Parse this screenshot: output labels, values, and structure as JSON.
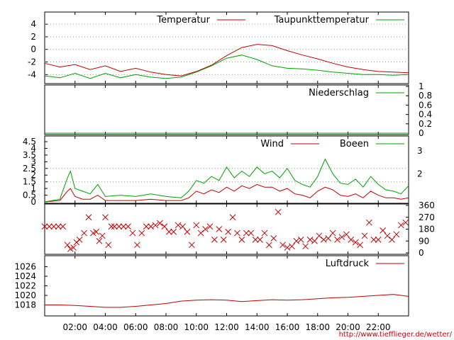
{
  "credit": "http://www.tiefflieger.de/wetter/",
  "colors": {
    "red": "#c00000",
    "green": "#00a000",
    "grid": "#999999",
    "axis": "#000000"
  },
  "chart_data": [
    {
      "type": "line",
      "id": "temp",
      "ylim": [
        -5.2,
        5.7
      ],
      "yticks": [
        "-4",
        "-2",
        "0",
        "2",
        "4"
      ],
      "ytick_values": [
        -4,
        -2,
        0,
        2,
        4
      ],
      "series": [
        {
          "name": "Temperatur",
          "color": "red",
          "x": [
            0,
            1,
            2,
            3,
            4,
            5,
            6,
            7,
            8,
            9,
            10,
            11,
            12,
            13,
            14,
            15,
            16,
            17,
            18,
            19,
            20,
            21,
            22,
            23,
            24
          ],
          "y": [
            -2.2,
            -2.8,
            -2.4,
            -3.2,
            -2.6,
            -3.5,
            -3.0,
            -3.6,
            -4.0,
            -4.2,
            -3.5,
            -2.5,
            -1.0,
            0.3,
            0.8,
            0.6,
            -0.2,
            -0.9,
            -1.5,
            -2.2,
            -2.8,
            -3.2,
            -3.5,
            -3.6,
            -3.7
          ]
        },
        {
          "name": "Taupunkttemperatur",
          "color": "green",
          "x": [
            0,
            1,
            2,
            3,
            4,
            5,
            6,
            7,
            8,
            9,
            10,
            11,
            12,
            13,
            14,
            15,
            16,
            17,
            18,
            19,
            20,
            21,
            22,
            23,
            24
          ],
          "y": [
            -4.2,
            -4.5,
            -3.8,
            -4.6,
            -3.8,
            -4.5,
            -4.0,
            -4.4,
            -4.6,
            -4.4,
            -3.6,
            -2.6,
            -1.4,
            -0.9,
            -1.6,
            -2.6,
            -3.0,
            -3.1,
            -3.3,
            -3.6,
            -3.8,
            -4.0,
            -4.0,
            -4.1,
            -4.0
          ]
        }
      ]
    },
    {
      "type": "line",
      "id": "rain",
      "ylim": [
        0,
        1
      ],
      "yticks": [
        "0",
        "0.2",
        "0.4",
        "0.6",
        "0.8",
        "1"
      ],
      "ytick_values": [
        0,
        0.2,
        0.4,
        0.6,
        0.8,
        1
      ],
      "series": [
        {
          "name": "Niederschlag",
          "color": "green",
          "x": [
            0,
            24
          ],
          "y": [
            0,
            0
          ]
        }
      ]
    },
    {
      "type": "line",
      "id": "wind",
      "ylim": [
        0,
        4.5
      ],
      "yticks": [
        "0",
        "0.5",
        "1",
        "1.5",
        "2",
        "2.5",
        "3",
        "3.5",
        "4",
        "4.5"
      ],
      "ytick_values": [
        0,
        0.5,
        1,
        1.5,
        2,
        2.5,
        3,
        3.5,
        4,
        4.5
      ],
      "right_yticks": [
        "2",
        "3"
      ],
      "right_ytick_values": [
        2.1,
        3.8
      ],
      "series": [
        {
          "name": "Wind",
          "color": "red",
          "x": [
            0,
            1,
            1.5,
            1.7,
            2,
            2.5,
            3,
            3.5,
            4,
            5,
            6,
            7,
            8,
            9,
            9.5,
            10,
            10.5,
            11,
            11.5,
            12,
            12.5,
            13,
            13.5,
            14,
            14.5,
            15,
            15.5,
            16,
            16.5,
            17,
            17.5,
            18,
            18.5,
            19,
            19.5,
            20,
            20.5,
            21,
            21.5,
            22,
            22.5,
            23,
            23.5,
            24
          ],
          "y": [
            0,
            0.1,
            0.8,
            1.0,
            0.4,
            0.2,
            0.2,
            0.5,
            0.1,
            0.1,
            0.1,
            0.2,
            0.1,
            0.1,
            0.3,
            0.8,
            0.6,
            0.9,
            0.7,
            1.1,
            0.8,
            1.2,
            1.0,
            1.3,
            1.1,
            1.1,
            0.8,
            1.0,
            0.6,
            0.5,
            0.3,
            0.8,
            1.1,
            0.9,
            0.5,
            0.4,
            0.6,
            0.3,
            0.8,
            0.5,
            0.3,
            0.3,
            0.2,
            0.3
          ]
        },
        {
          "name": "Boeen",
          "color": "green",
          "x": [
            0,
            1,
            1.5,
            1.7,
            2,
            2.5,
            3,
            3.5,
            4,
            5,
            6,
            7,
            8,
            9,
            9.5,
            10,
            10.5,
            11,
            11.5,
            12,
            12.5,
            13,
            13.5,
            14,
            14.5,
            15,
            15.5,
            16,
            16.5,
            17,
            17.5,
            18,
            18.5,
            19,
            19.5,
            20,
            20.5,
            21,
            21.5,
            22,
            22.5,
            23,
            23.5,
            24
          ],
          "y": [
            0,
            0.2,
            1.8,
            2.3,
            1.0,
            0.8,
            0.6,
            1.3,
            0.4,
            0.5,
            0.4,
            0.6,
            0.4,
            0.3,
            0.8,
            1.6,
            1.4,
            1.9,
            1.6,
            2.6,
            1.8,
            2.3,
            1.9,
            2.6,
            2.1,
            2.3,
            1.8,
            2.5,
            1.6,
            1.3,
            1.1,
            1.9,
            3.2,
            2.1,
            1.4,
            1.3,
            1.7,
            1.1,
            1.9,
            1.3,
            0.9,
            0.8,
            0.6,
            1.2
          ]
        }
      ]
    },
    {
      "type": "scatter",
      "id": "direction",
      "ylim": [
        0,
        360
      ],
      "yticks": [
        "0",
        "90",
        "180",
        "270",
        "360"
      ],
      "ytick_values": [
        0,
        90,
        180,
        270,
        360
      ],
      "series": [
        {
          "name": "",
          "color": "red",
          "x": [
            0,
            0.3,
            0.6,
            0.9,
            1.2,
            1.5,
            1.7,
            1.9,
            2.1,
            2.3,
            2.6,
            2.9,
            3.2,
            3.4,
            3.6,
            3.8,
            4.0,
            4.2,
            4.4,
            4.6,
            4.9,
            5.2,
            5.5,
            5.8,
            6.1,
            6.4,
            6.7,
            7.0,
            7.3,
            7.6,
            7.9,
            8.2,
            8.5,
            8.8,
            9.1,
            9.4,
            9.7,
            10.0,
            10.3,
            10.6,
            10.9,
            11.2,
            11.5,
            11.8,
            12.1,
            12.4,
            12.7,
            13.0,
            13.3,
            13.6,
            13.9,
            14.2,
            14.5,
            14.8,
            15.1,
            15.4,
            15.7,
            16.0,
            16.3,
            16.6,
            16.9,
            17.2,
            17.5,
            17.8,
            18.1,
            18.4,
            18.7,
            19.0,
            19.3,
            19.6,
            19.9,
            20.2,
            20.5,
            20.8,
            21.1,
            21.4,
            21.7,
            22.0,
            22.3,
            22.6,
            22.9,
            23.2,
            23.5,
            23.8
          ],
          "y": [
            200,
            200,
            200,
            200,
            200,
            60,
            30,
            40,
            80,
            100,
            150,
            270,
            150,
            160,
            90,
            130,
            270,
            60,
            200,
            200,
            200,
            200,
            200,
            150,
            60,
            150,
            200,
            200,
            210,
            225,
            200,
            160,
            160,
            210,
            200,
            160,
            60,
            210,
            150,
            180,
            200,
            100,
            180,
            100,
            160,
            270,
            150,
            100,
            150,
            150,
            100,
            100,
            150,
            60,
            110,
            310,
            60,
            40,
            50,
            90,
            100,
            50,
            100,
            90,
            130,
            100,
            110,
            150,
            100,
            120,
            140,
            100,
            80,
            60,
            130,
            230,
            100,
            100,
            170,
            130,
            100,
            140,
            210,
            230
          ]
        }
      ]
    },
    {
      "type": "line",
      "id": "pressure",
      "ylim": [
        1016,
        1028
      ],
      "yticks": [
        "1018",
        "1020",
        "1022",
        "1024",
        "1026"
      ],
      "ytick_values": [
        1018,
        1020,
        1022,
        1024,
        1026
      ],
      "xticks": [
        "02:00",
        "04:00",
        "06:00",
        "08:00",
        "10:00",
        "12:00",
        "14:00",
        "16:00",
        "18:00",
        "20:00",
        "22:00"
      ],
      "xtick_values": [
        2,
        4,
        6,
        8,
        10,
        12,
        14,
        16,
        18,
        20,
        22
      ],
      "xlim": [
        0,
        24
      ],
      "series": [
        {
          "name": "Luftdruck",
          "color": "red",
          "x": [
            0,
            1,
            2,
            3,
            4,
            5,
            6,
            7,
            8,
            9,
            10,
            11,
            12,
            13,
            14,
            15,
            16,
            17,
            18,
            19,
            20,
            21,
            22,
            23,
            24
          ],
          "y": [
            1018.0,
            1018.0,
            1017.9,
            1017.7,
            1017.5,
            1017.5,
            1017.7,
            1018.0,
            1018.3,
            1018.8,
            1019.0,
            1019.1,
            1019.0,
            1018.7,
            1018.9,
            1019.1,
            1019.0,
            1019.1,
            1019.3,
            1019.5,
            1019.6,
            1019.8,
            1020.0,
            1020.2,
            1019.8
          ]
        }
      ]
    }
  ]
}
